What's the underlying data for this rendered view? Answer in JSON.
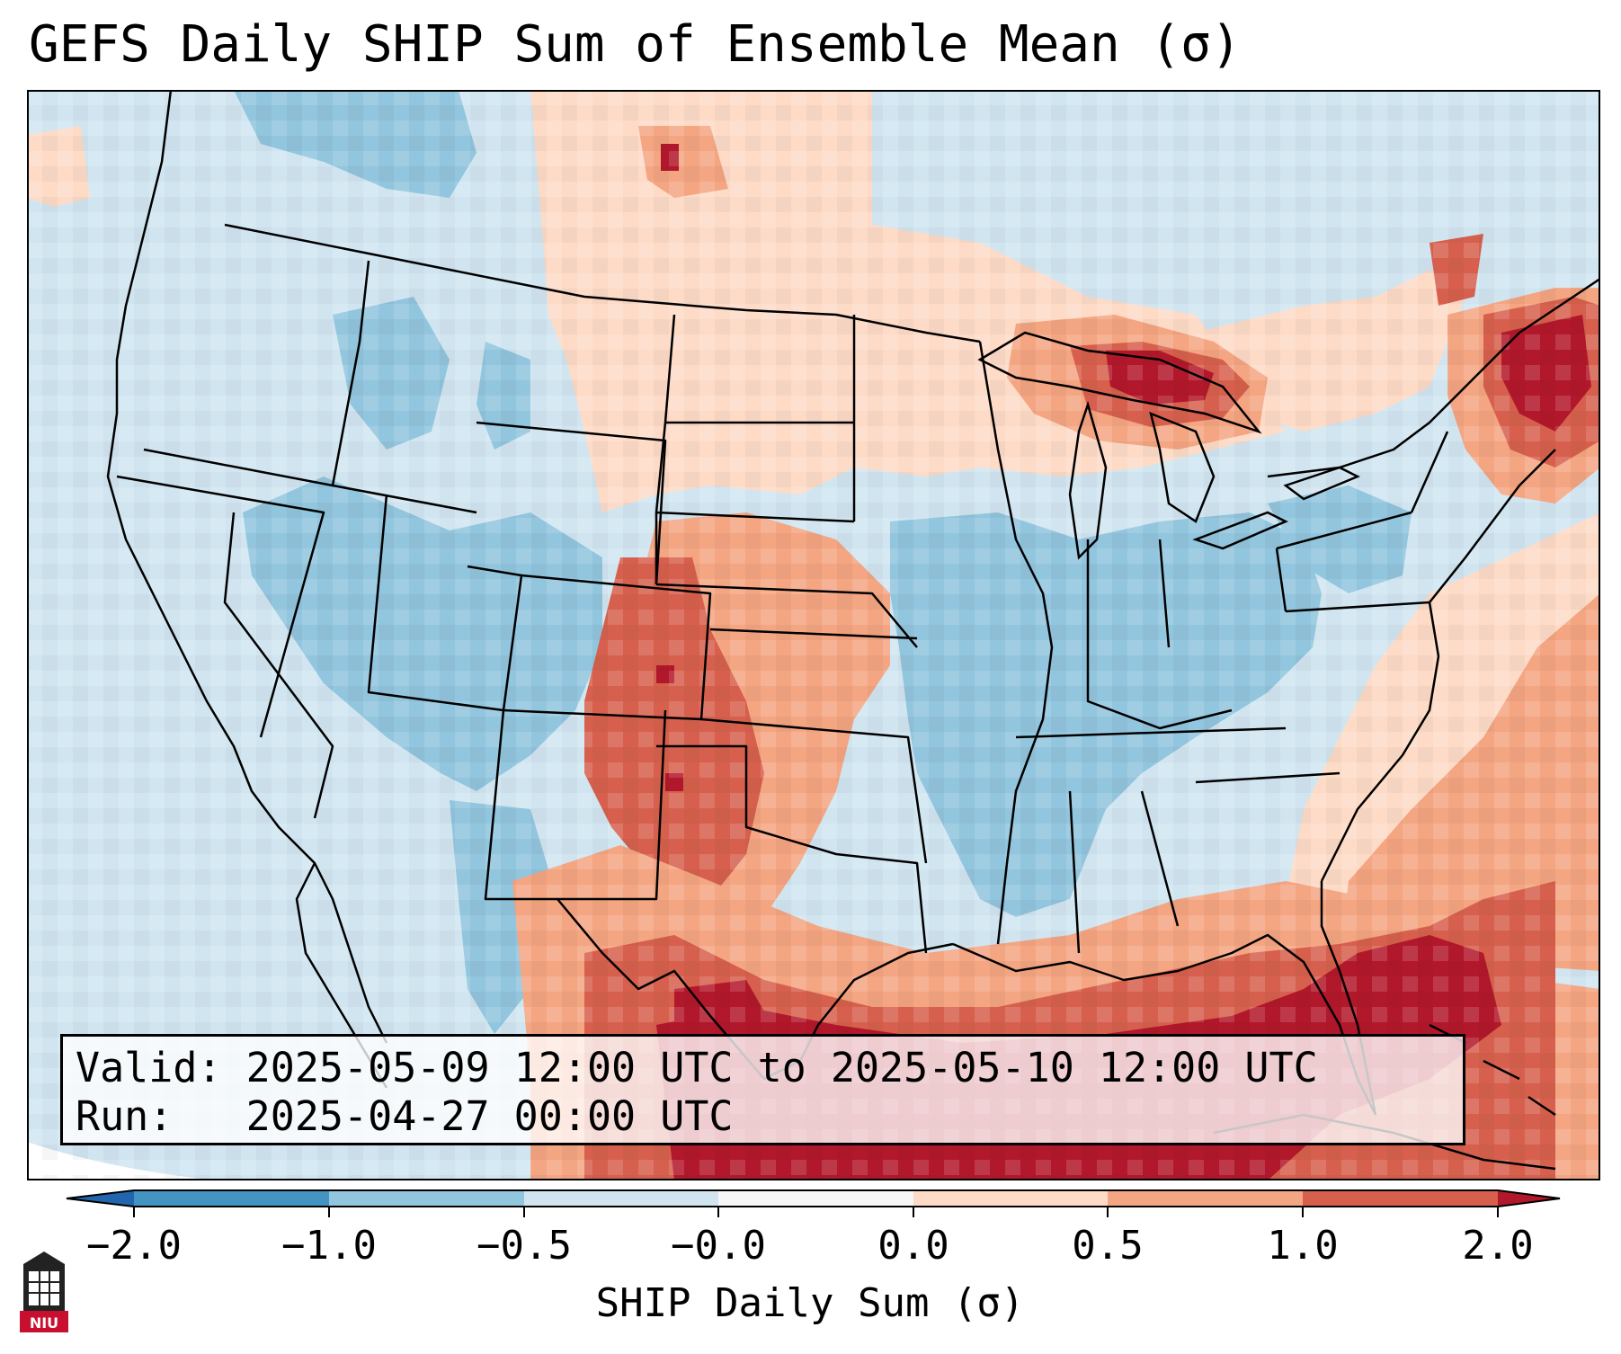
{
  "title": "GEFS Daily SHIP Sum of Ensemble Mean (σ)",
  "info": {
    "valid_line": "Valid: 2025-05-09 12:00 UTC to 2025-05-10 12:00 UTC",
    "run_line": "Run:   2025-04-27 00:00 UTC"
  },
  "colorbar": {
    "label": "SHIP Daily Sum (σ)",
    "ticks": [
      "−2.0",
      "−1.0",
      "−0.5",
      "−0.0",
      "0.0",
      "0.5",
      "1.0",
      "2.0"
    ],
    "bins": [
      {
        "range": "< -2.0",
        "color": "#2166ac"
      },
      {
        "range": "-2.0 to -1.0",
        "color": "#4393c3"
      },
      {
        "range": "-1.0 to -0.5",
        "color": "#92c5de"
      },
      {
        "range": "-0.5 to -0.0",
        "color": "#d1e5f0"
      },
      {
        "range": "-0.0 to 0.0",
        "color": "#f7f7f7"
      },
      {
        "range": "0.0 to 0.5",
        "color": "#fddbc7"
      },
      {
        "range": "0.5 to 1.0",
        "color": "#f4a582"
      },
      {
        "range": "1.0 to 2.0",
        "color": "#d6604d"
      },
      {
        "range": "> 2.0",
        "color": "#b2182b"
      }
    ]
  },
  "regions": [
    {
      "name": "Pacific Northwest / Northern Rockies",
      "level": "-1.0 to -0.5"
    },
    {
      "name": "Great Basin",
      "level": "-1.0 to -0.5"
    },
    {
      "name": "Northern Plains",
      "level": "0.0 to 0.5"
    },
    {
      "name": "Upper Great Lakes (Lake Superior)",
      "level": "> 2.0"
    },
    {
      "name": "Northern New England",
      "level": "> 2.0"
    },
    {
      "name": "Ohio / Tennessee Valleys",
      "level": "-1.0 to -0.5"
    },
    {
      "name": "Southern High Plains / New Mexico",
      "level": "1.0 to 2.0"
    },
    {
      "name": "Texas / Gulf of Mexico",
      "level": "> 2.0"
    },
    {
      "name": "Western Atlantic",
      "level": "0.5 to 1.0"
    }
  ],
  "logo": {
    "text": "NIU",
    "color": "#c8102e"
  }
}
